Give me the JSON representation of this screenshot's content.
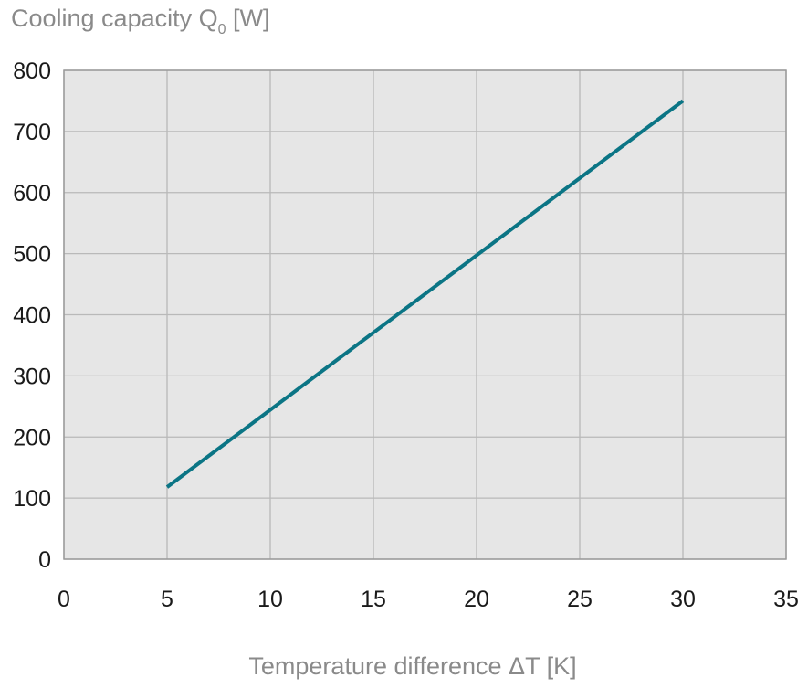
{
  "chart_data": {
    "type": "line",
    "title": {
      "prefix": "Cooling capacity Q",
      "subscript": "0",
      "suffix": " [W]"
    },
    "xlabel": "Temperature difference ΔT [K]",
    "ylabel": "Cooling capacity Q0 [W]",
    "xlim": [
      0,
      35
    ],
    "ylim": [
      0,
      800
    ],
    "x_ticks": [
      0,
      5,
      10,
      15,
      20,
      25,
      30,
      35
    ],
    "y_ticks": [
      0,
      100,
      200,
      300,
      400,
      500,
      600,
      700,
      800
    ],
    "x_tick_labels": [
      "0",
      "5",
      "10",
      "15",
      "20",
      "25",
      "30",
      "35"
    ],
    "y_tick_labels": [
      "0",
      "100",
      "200",
      "300",
      "400",
      "500",
      "600",
      "700",
      "800"
    ],
    "grid": true,
    "series": [
      {
        "name": "Cooling capacity",
        "x": [
          5,
          30
        ],
        "y": [
          118,
          750
        ]
      }
    ],
    "colors": {
      "plot_background": "#e6e6e6",
      "grid": "#b9b9b9",
      "frame": "#9a9a9a",
      "line": "#0b7585",
      "title": "#8a8a8a",
      "tick_text": "#1a1a1a"
    }
  }
}
